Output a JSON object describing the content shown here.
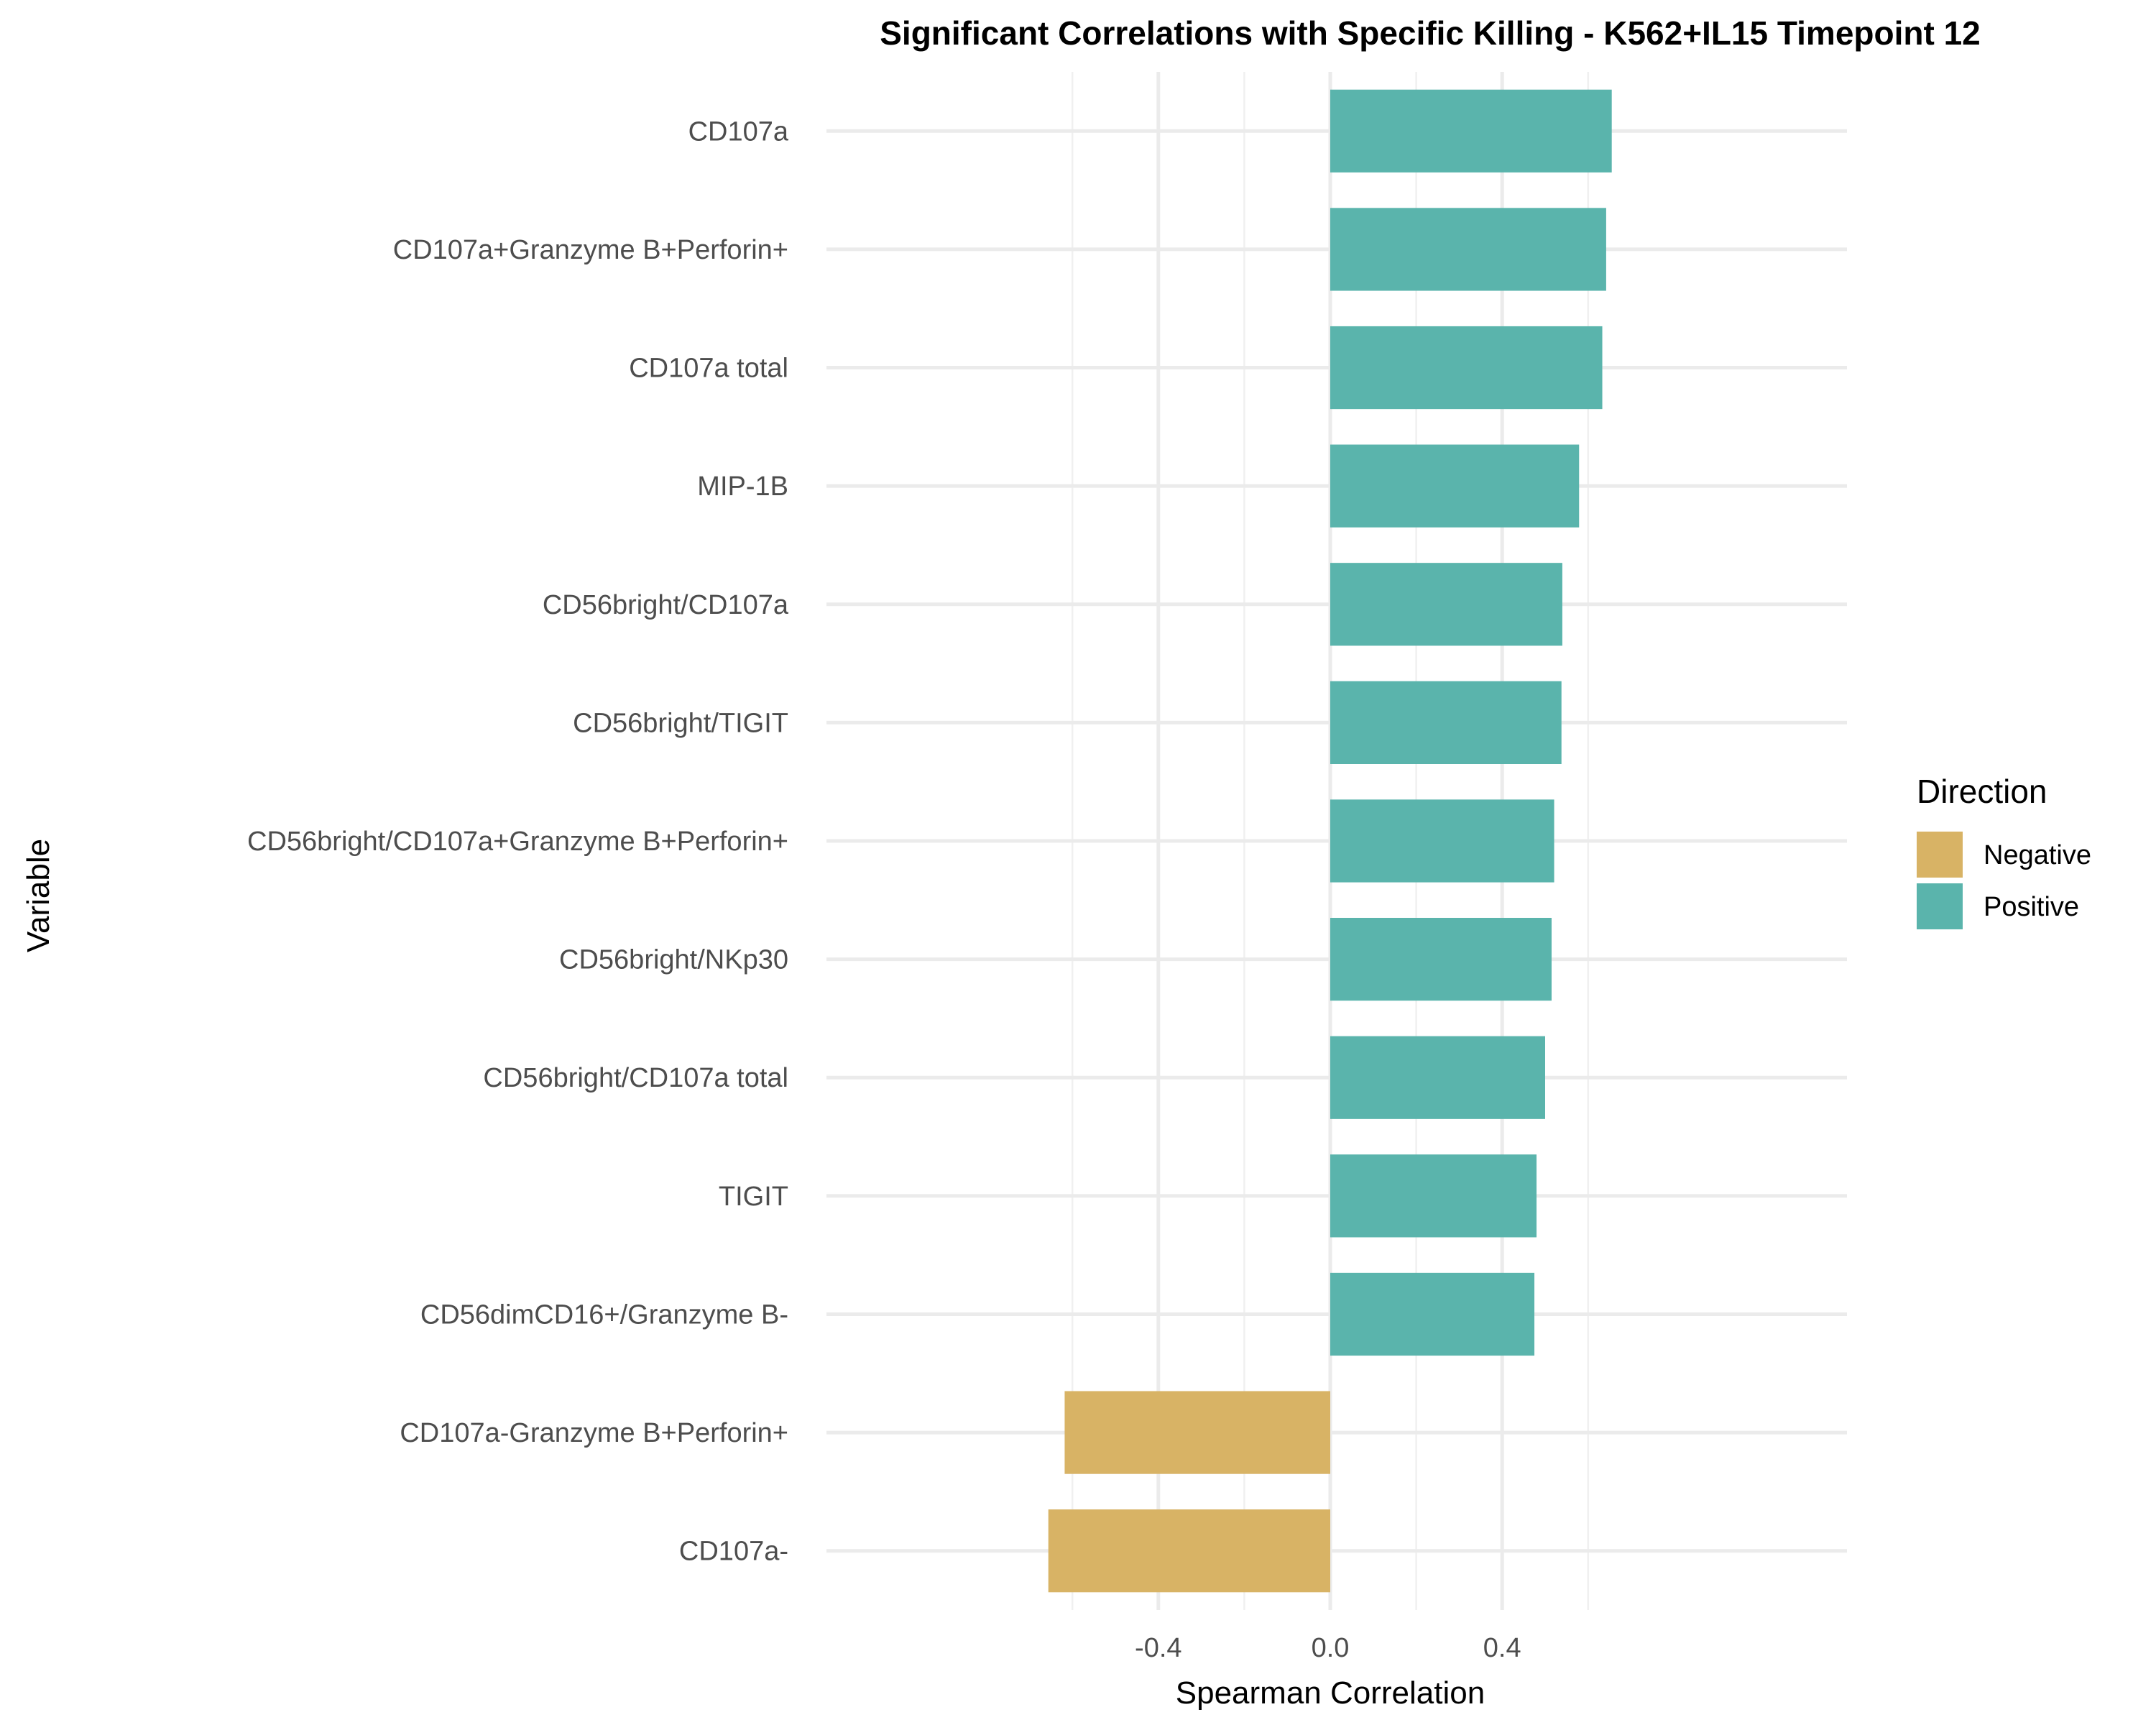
{
  "chart_data": {
    "type": "bar",
    "orientation": "horizontal",
    "title": "Significant Correlations with Specific Killing - K562+IL15 Timepoint 12",
    "xlabel": "Spearman Correlation",
    "ylabel": "Variable",
    "xlim": [
      -0.72,
      0.72
    ],
    "x_ticks": [
      -0.4,
      0.0,
      0.4
    ],
    "x_tick_labels": [
      "-0.4",
      "0.0",
      "0.4"
    ],
    "grid": true,
    "legend": {
      "title": "Direction",
      "position": "right",
      "entries": [
        {
          "label": "Negative",
          "color": "#D8B365"
        },
        {
          "label": "Positive",
          "color": "#5AB4AC"
        }
      ]
    },
    "categories": [
      "CD107a",
      "CD107a+Granzyme B+Perforin+",
      "CD107a total",
      "MIP-1B",
      "CD56bright/CD107a",
      "CD56bright/TIGIT",
      "CD56bright/CD107a+Granzyme B+Perforin+",
      "CD56bright/NKp30",
      "CD56bright/CD107a total",
      "TIGIT",
      "CD56dimCD16+/Granzyme B-",
      "CD107a-Granzyme B+Perforin+",
      "CD107a-"
    ],
    "values": [
      0.655,
      0.642,
      0.633,
      0.579,
      0.54,
      0.538,
      0.521,
      0.515,
      0.5,
      0.48,
      0.475,
      -0.618,
      -0.656
    ],
    "direction": [
      "Positive",
      "Positive",
      "Positive",
      "Positive",
      "Positive",
      "Positive",
      "Positive",
      "Positive",
      "Positive",
      "Positive",
      "Positive",
      "Negative",
      "Negative"
    ]
  }
}
